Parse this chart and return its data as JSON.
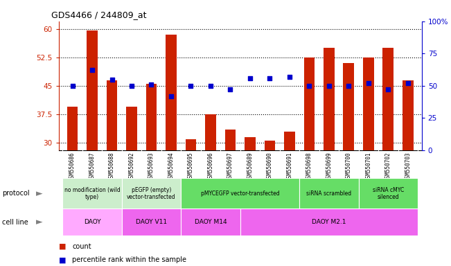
{
  "title": "GDS4466 / 244809_at",
  "samples": [
    "GSM550686",
    "GSM550687",
    "GSM550688",
    "GSM550692",
    "GSM550693",
    "GSM550694",
    "GSM550695",
    "GSM550696",
    "GSM550697",
    "GSM550689",
    "GSM550690",
    "GSM550691",
    "GSM550698",
    "GSM550699",
    "GSM550700",
    "GSM550701",
    "GSM550702",
    "GSM550703"
  ],
  "counts": [
    39.5,
    59.5,
    46.5,
    39.5,
    45.5,
    58.5,
    31.0,
    37.5,
    33.5,
    31.5,
    30.5,
    33.0,
    52.5,
    55.0,
    51.0,
    52.5,
    55.0,
    46.5
  ],
  "percentiles": [
    50,
    62,
    55,
    50,
    51,
    42,
    50,
    50,
    47,
    56,
    56,
    57,
    50,
    50,
    50,
    52,
    47,
    52
  ],
  "ylim_left": [
    28,
    62
  ],
  "ylim_right": [
    0,
    100
  ],
  "yticks_left": [
    30,
    37.5,
    45,
    52.5,
    60
  ],
  "yticks_right": [
    0,
    25,
    50,
    75,
    100
  ],
  "ytick_labels_left": [
    "30",
    "37.5",
    "45",
    "52.5",
    "60"
  ],
  "ytick_labels_right": [
    "0",
    "25",
    "50",
    "75",
    "100%"
  ],
  "protocol_groups": [
    {
      "label": "no modification (wild\ntype)",
      "start": 0,
      "end": 3,
      "color": "#cceecc"
    },
    {
      "label": "pEGFP (empty)\nvector-transfected",
      "start": 3,
      "end": 6,
      "color": "#cceecc"
    },
    {
      "label": "pMYCEGFP vector-transfected",
      "start": 6,
      "end": 12,
      "color": "#66dd66"
    },
    {
      "label": "siRNA scrambled",
      "start": 12,
      "end": 15,
      "color": "#66dd66"
    },
    {
      "label": "siRNA cMYC\nsilenced",
      "start": 15,
      "end": 18,
      "color": "#66dd66"
    }
  ],
  "cellline_groups": [
    {
      "label": "DAOY",
      "start": 0,
      "end": 3,
      "color": "#ffaaff"
    },
    {
      "label": "DAOY V11",
      "start": 3,
      "end": 6,
      "color": "#ee66ee"
    },
    {
      "label": "DAOY M14",
      "start": 6,
      "end": 9,
      "color": "#ee66ee"
    },
    {
      "label": "DAOY M2.1",
      "start": 9,
      "end": 18,
      "color": "#ee66ee"
    }
  ],
  "bar_color": "#cc2200",
  "dot_color": "#0000cc",
  "label_color_left": "#cc2200",
  "label_color_right": "#0000cc",
  "tick_area_color": "#dddddd",
  "spine_color": "#888888"
}
